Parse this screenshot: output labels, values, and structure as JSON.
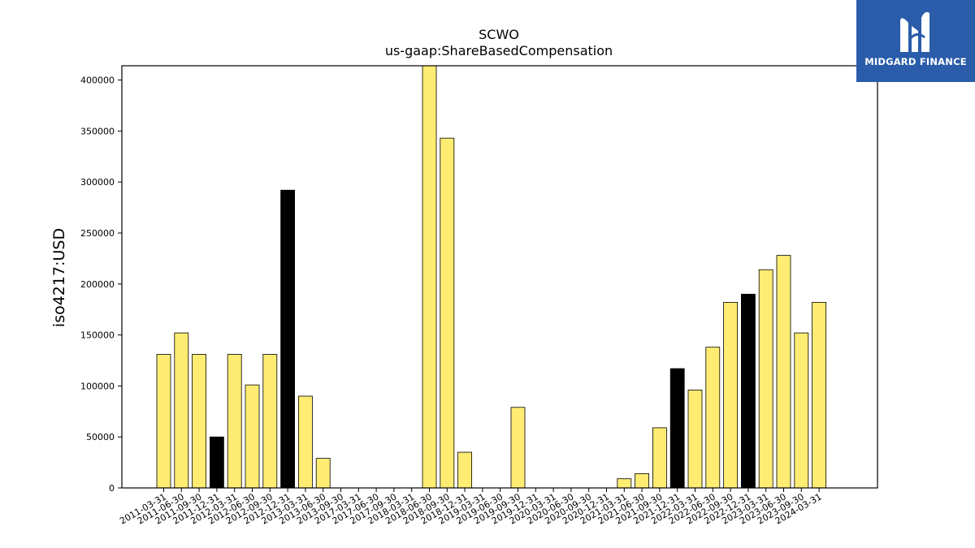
{
  "chart_data": {
    "type": "bar",
    "title": "SCWO",
    "subtitle": "us-gaap:ShareBasedCompensation",
    "xlabel": "",
    "ylabel": "iso4217:USD",
    "ylim": [
      0,
      414000
    ],
    "yticks": [
      0,
      50000,
      100000,
      150000,
      200000,
      250000,
      300000,
      350000,
      400000
    ],
    "categories": [
      "2011-03-31",
      "2011-06-30",
      "2011-09-30",
      "2011-12-31",
      "2012-03-31",
      "2012-06-30",
      "2012-09-30",
      "2012-12-31",
      "2013-03-31",
      "2013-06-30",
      "2013-09-30",
      "2017-03-31",
      "2017-06-30",
      "2017-09-30",
      "2018-03-31",
      "2018-06-30",
      "2018-09-30",
      "2018-12-31",
      "2019-03-31",
      "2019-06-30",
      "2019-09-30",
      "2019-12-31",
      "2020-03-31",
      "2020-06-30",
      "2020-09-30",
      "2020-12-31",
      "2021-03-31",
      "2021-06-30",
      "2021-09-30",
      "2021-12-31",
      "2022-03-31",
      "2022-06-30",
      "2022-09-30",
      "2022-12-31",
      "2023-03-31",
      "2023-06-30",
      "2023-09-30",
      "2024-03-31"
    ],
    "values": [
      131000,
      152000,
      131000,
      50000,
      131000,
      101000,
      131000,
      292000,
      90000,
      29000,
      0,
      0,
      0,
      0,
      0,
      414000,
      343000,
      35000,
      0,
      0,
      79000,
      0,
      0,
      0,
      0,
      0,
      9000,
      14000,
      59000,
      117000,
      96000,
      138000,
      182000,
      190000,
      214000,
      228000,
      152000,
      182000
    ],
    "highlight": [
      false,
      false,
      false,
      true,
      false,
      false,
      false,
      true,
      false,
      false,
      false,
      false,
      false,
      false,
      false,
      false,
      false,
      false,
      false,
      false,
      false,
      false,
      false,
      false,
      false,
      false,
      false,
      false,
      false,
      true,
      false,
      false,
      false,
      true,
      false,
      false,
      false,
      false
    ],
    "colors": {
      "bar": "#ffec72",
      "highlight": "#000000",
      "edge": "#000000"
    },
    "grid": false
  },
  "logo": {
    "text": "MIDGARD FINANCE",
    "background": "#2a5caa"
  }
}
